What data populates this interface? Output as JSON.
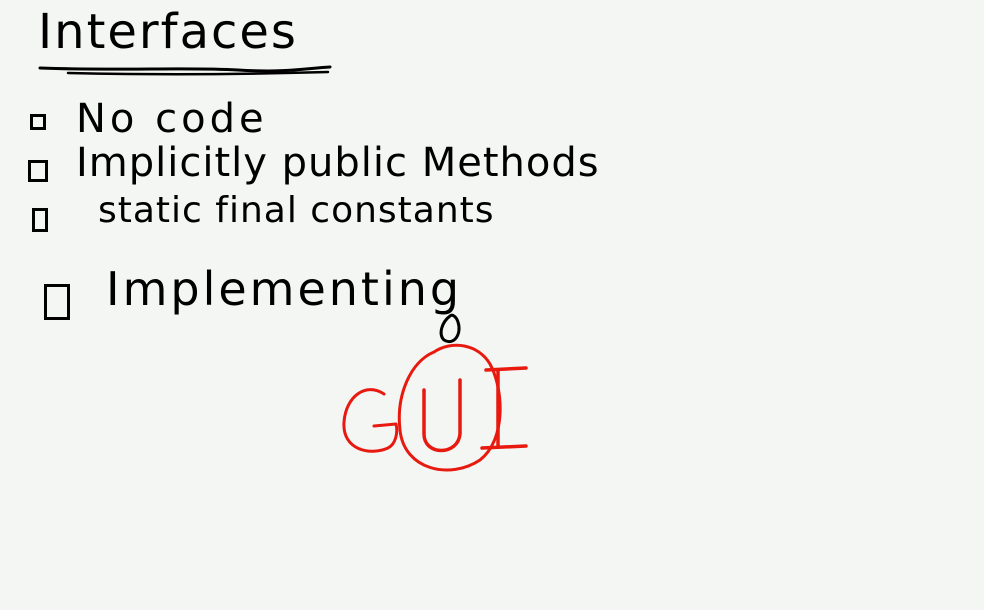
{
  "title": "Interfaces",
  "items": [
    {
      "label": "No code"
    },
    {
      "label": "Implicitly public Methods"
    },
    {
      "label": "static final constants"
    },
    {
      "label": "Implementing"
    }
  ],
  "annotation": {
    "label": "GUI",
    "color": "#e8190f"
  },
  "ink_color": "#000000",
  "background_color": "#f4f6f4"
}
